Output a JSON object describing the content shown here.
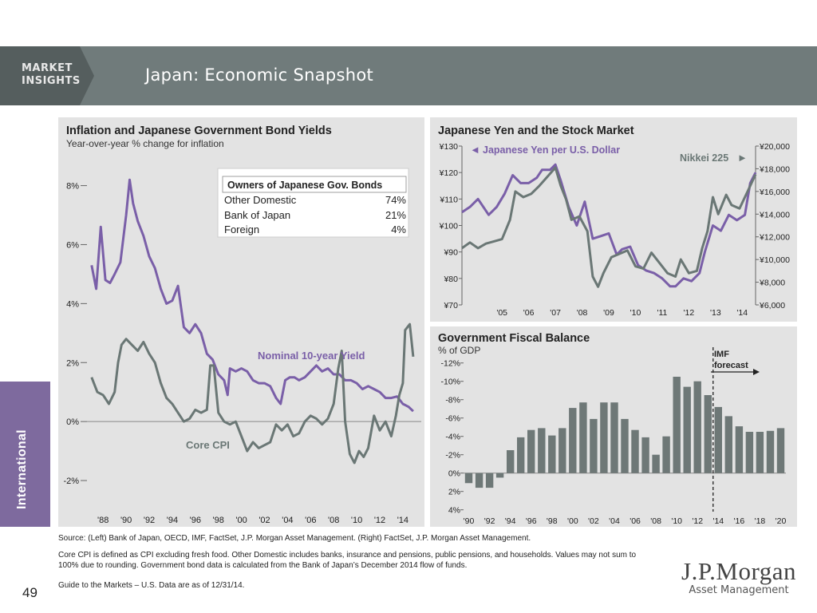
{
  "header": {
    "brand_line1": "MARKET",
    "brand_line2": "INSIGHTS",
    "title": "Japan: Economic Snapshot"
  },
  "sidebar": {
    "label": "International"
  },
  "page_number": "49",
  "footnotes": {
    "source": "Source: (Left) Bank of Japan, OECD, IMF, FactSet, J.P. Morgan Asset Management. (Right) FactSet, J.P. Morgan Asset Management.",
    "definition": "Core CPI is defined as CPI excluding fresh food. Other Domestic includes banks, insurance and pensions, public pensions, and households. Values may not sum to 100% due to rounding. Government bond data is calculated from the Bank of Japan’s December 2014 flow of funds.",
    "guide": "Guide to the Markets – U.S. Data are as of 12/31/14."
  },
  "logo": {
    "name": "J.P.Morgan",
    "sub": "Asset Management"
  },
  "colors": {
    "purple": "#7a5fa8",
    "gray_line": "#6a7775",
    "bar": "#6e7877",
    "panel": "#e3e3e3"
  },
  "chart_data": [
    {
      "type": "line",
      "title": "Inflation and Japanese Government Bond Yields",
      "subtitle": "Year-over-year % change for inflation",
      "ylim": [
        -3,
        8.8
      ],
      "yticks": [
        "8%",
        "6%",
        "4%",
        "2%",
        "0%",
        "-2%"
      ],
      "ytick_values": [
        8,
        6,
        4,
        2,
        0,
        -2
      ],
      "xticks": [
        "'88",
        "'90",
        "'92",
        "'94",
        "'96",
        "'98",
        "'00",
        "'02",
        "'04",
        "'06",
        "'08",
        "'10",
        "'12",
        "'14"
      ],
      "xtick_values": [
        1988,
        1990,
        1992,
        1994,
        1996,
        1998,
        2000,
        2002,
        2004,
        2006,
        2008,
        2010,
        2012,
        2014
      ],
      "xlim": [
        1986.6,
        2015.6
      ],
      "series": [
        {
          "name": "Nominal 10-year Yield",
          "color": "#7a5fa8",
          "x": [
            1987.0,
            1987.4,
            1987.8,
            1988.2,
            1988.6,
            1989.0,
            1989.5,
            1990.0,
            1990.3,
            1990.6,
            1991.0,
            1991.5,
            1992.0,
            1992.5,
            1993.0,
            1993.5,
            1994.0,
            1994.5,
            1995.0,
            1995.5,
            1996.0,
            1996.5,
            1997.0,
            1997.5,
            1998.0,
            1998.5,
            1998.8,
            1999.0,
            1999.5,
            2000.0,
            2000.5,
            2001.0,
            2001.5,
            2002.0,
            2002.5,
            2003.0,
            2003.4,
            2003.8,
            2004.2,
            2004.6,
            2005.0,
            2005.5,
            2006.0,
            2006.5,
            2007.0,
            2007.5,
            2008.0,
            2008.5,
            2009.0,
            2009.5,
            2010.0,
            2010.5,
            2011.0,
            2011.5,
            2012.0,
            2012.5,
            2013.0,
            2013.5,
            2014.0,
            2014.5,
            2014.9
          ],
          "y": [
            5.3,
            4.5,
            6.6,
            4.8,
            4.7,
            5.0,
            5.4,
            7.0,
            8.2,
            7.4,
            6.8,
            6.3,
            5.6,
            5.2,
            4.5,
            4.0,
            4.1,
            4.6,
            3.2,
            3.0,
            3.3,
            3.0,
            2.3,
            2.1,
            1.6,
            1.4,
            0.9,
            1.8,
            1.7,
            1.8,
            1.7,
            1.4,
            1.3,
            1.3,
            1.2,
            0.8,
            0.6,
            1.4,
            1.5,
            1.5,
            1.4,
            1.5,
            1.7,
            1.9,
            1.7,
            1.8,
            1.6,
            1.6,
            1.4,
            1.4,
            1.3,
            1.1,
            1.2,
            1.1,
            1.0,
            0.8,
            0.8,
            0.85,
            0.6,
            0.5,
            0.35
          ]
        },
        {
          "name": "Core CPI",
          "color": "#6a7775",
          "x": [
            1987.0,
            1987.5,
            1988.0,
            1988.5,
            1989.0,
            1989.3,
            1989.6,
            1990.0,
            1990.5,
            1991.0,
            1991.5,
            1992.0,
            1992.5,
            1993.0,
            1993.5,
            1994.0,
            1994.5,
            1995.0,
            1995.5,
            1996.0,
            1996.5,
            1997.0,
            1997.3,
            1997.6,
            1998.0,
            1998.5,
            1999.0,
            1999.5,
            2000.0,
            2000.5,
            2001.0,
            2001.5,
            2002.0,
            2002.5,
            2003.0,
            2003.5,
            2004.0,
            2004.5,
            2005.0,
            2005.5,
            2006.0,
            2006.5,
            2007.0,
            2007.5,
            2008.0,
            2008.4,
            2008.7,
            2009.0,
            2009.4,
            2009.8,
            2010.2,
            2010.6,
            2011.0,
            2011.5,
            2012.0,
            2012.5,
            2013.0,
            2013.4,
            2013.7,
            2014.0,
            2014.2,
            2014.6,
            2014.9
          ],
          "y": [
            1.5,
            1.0,
            0.9,
            0.6,
            1.0,
            2.0,
            2.6,
            2.8,
            2.6,
            2.4,
            2.7,
            2.3,
            2.0,
            1.3,
            0.8,
            0.6,
            0.3,
            0.0,
            0.1,
            0.4,
            0.3,
            0.4,
            1.9,
            1.9,
            0.3,
            0.0,
            -0.1,
            0.0,
            -0.5,
            -1.0,
            -0.7,
            -0.9,
            -0.8,
            -0.7,
            -0.1,
            -0.3,
            -0.1,
            -0.5,
            -0.4,
            0.0,
            0.2,
            0.1,
            -0.1,
            0.1,
            0.6,
            1.8,
            2.4,
            0.0,
            -1.1,
            -1.4,
            -1.0,
            -1.2,
            -0.9,
            0.2,
            -0.3,
            0.0,
            -0.5,
            0.2,
            0.9,
            1.3,
            3.1,
            3.3,
            2.2
          ]
        }
      ],
      "annotations": [
        "Nominal 10-year Yield",
        "Core CPI"
      ],
      "table": {
        "title": "Owners of Japanese Gov. Bonds",
        "rows": [
          {
            "label": "Other Domestic",
            "value": "74%"
          },
          {
            "label": "Bank of Japan",
            "value": "21%"
          },
          {
            "label": "Foreign",
            "value": "4%"
          }
        ]
      }
    },
    {
      "type": "line",
      "title": "Japanese Yen and the Stock Market",
      "xticks": [
        "'05",
        "'06",
        "'07",
        "'08",
        "'09",
        "'10",
        "'11",
        "'12",
        "'13",
        "'14"
      ],
      "xtick_values": [
        2005,
        2006,
        2007,
        2008,
        2009,
        2010,
        2011,
        2012,
        2013,
        2014
      ],
      "xlim": [
        2004.0,
        2015.0
      ],
      "y_left": {
        "ylim": [
          70,
          130
        ],
        "ticks": [
          "¥130",
          "¥120",
          "¥110",
          "¥100",
          "¥90",
          "¥80",
          "¥70"
        ],
        "tick_values": [
          130,
          120,
          110,
          100,
          90,
          80,
          70
        ]
      },
      "y_right": {
        "ylim": [
          6000,
          20000
        ],
        "ticks": [
          "¥20,000",
          "¥18,000",
          "¥16,000",
          "¥14,000",
          "¥12,000",
          "¥10,000",
          "¥8,000",
          "¥6,000"
        ],
        "tick_values": [
          20000,
          18000,
          16000,
          14000,
          12000,
          10000,
          8000,
          6000
        ]
      },
      "series": [
        {
          "name": "Japanese Yen per U.S. Dollar",
          "axis": "left",
          "color": "#7a5fa8",
          "x": [
            2004.0,
            2004.3,
            2004.6,
            2005.0,
            2005.3,
            2005.6,
            2005.9,
            2006.2,
            2006.5,
            2006.8,
            2007.0,
            2007.3,
            2007.5,
            2007.7,
            2008.0,
            2008.3,
            2008.6,
            2008.9,
            2009.2,
            2009.5,
            2009.8,
            2010.0,
            2010.3,
            2010.6,
            2010.9,
            2011.2,
            2011.5,
            2011.8,
            2012.0,
            2012.3,
            2012.6,
            2012.9,
            2013.1,
            2013.4,
            2013.7,
            2014.0,
            2014.3,
            2014.6,
            2014.8,
            2015.0
          ],
          "y": [
            105,
            107,
            110,
            104,
            107,
            112,
            119,
            116,
            116,
            118,
            121,
            121,
            123,
            117,
            107,
            100,
            109,
            95,
            96,
            97,
            89,
            91,
            92,
            85,
            83,
            82,
            80,
            77,
            77,
            80,
            79,
            82,
            90,
            100,
            98,
            104,
            102,
            104,
            116,
            120
          ]
        },
        {
          "name": "Nikkei 225",
          "axis": "right",
          "color": "#6a7775",
          "x": [
            2004.0,
            2004.3,
            2004.6,
            2004.9,
            2005.2,
            2005.5,
            2005.8,
            2006.0,
            2006.3,
            2006.6,
            2006.9,
            2007.2,
            2007.5,
            2007.7,
            2007.9,
            2008.1,
            2008.4,
            2008.7,
            2008.9,
            2009.1,
            2009.3,
            2009.6,
            2009.9,
            2010.2,
            2010.5,
            2010.8,
            2011.1,
            2011.4,
            2011.7,
            2012.0,
            2012.2,
            2012.5,
            2012.8,
            2013.0,
            2013.2,
            2013.4,
            2013.6,
            2013.9,
            2014.1,
            2014.4,
            2014.7,
            2015.0
          ],
          "y": [
            11000,
            11500,
            11000,
            11400,
            11600,
            11800,
            13500,
            16000,
            15500,
            15800,
            16500,
            17300,
            18100,
            16500,
            15300,
            13500,
            13800,
            12500,
            8500,
            7600,
            8800,
            10200,
            10500,
            10800,
            9400,
            9200,
            10600,
            9700,
            8800,
            8500,
            10000,
            8800,
            9000,
            11000,
            12500,
            15500,
            14000,
            15700,
            14800,
            14500,
            16000,
            17500
          ]
        }
      ],
      "legend": "inline labels top-left and top-right"
    },
    {
      "type": "bar",
      "title": "Government Fiscal Balance",
      "ylabel": "% of GDP",
      "ylim": [
        -12.5,
        4.2
      ],
      "yticks": [
        "-12%",
        "-10%",
        "-8%",
        "-6%",
        "-4%",
        "-2%",
        "0%",
        "2%",
        "4%"
      ],
      "ytick_values": [
        -12,
        -10,
        -8,
        -6,
        -4,
        -2,
        0,
        2,
        4
      ],
      "categories": [
        "1990",
        "1991",
        "1992",
        "1993",
        "1994",
        "1995",
        "1996",
        "1997",
        "1998",
        "1999",
        "2000",
        "2001",
        "2002",
        "2003",
        "2004",
        "2005",
        "2006",
        "2007",
        "2008",
        "2009",
        "2010",
        "2011",
        "2012",
        "2013",
        "2014",
        "2015",
        "2016",
        "2017",
        "2018",
        "2019",
        "2020"
      ],
      "values": [
        1.1,
        1.6,
        1.6,
        0.5,
        -2.5,
        -3.9,
        -4.7,
        -4.9,
        -4.1,
        -4.9,
        -7.1,
        -7.7,
        -5.9,
        -7.7,
        -7.7,
        -5.9,
        -4.7,
        -3.9,
        -2.0,
        -4.0,
        -10.5,
        -9.4,
        -10.0,
        -8.5,
        -7.2,
        -6.2,
        -5.1,
        -4.5,
        -4.5,
        -4.6,
        -4.9
      ],
      "xticks": [
        "'90",
        "'92",
        "'94",
        "'96",
        "'98",
        "'00",
        "'02",
        "'04",
        "'06",
        "'08",
        "'10",
        "'12",
        "'14",
        "'16",
        "'18",
        "'20"
      ],
      "annotation": "IMF forecast",
      "forecast_start": "2013"
    }
  ]
}
